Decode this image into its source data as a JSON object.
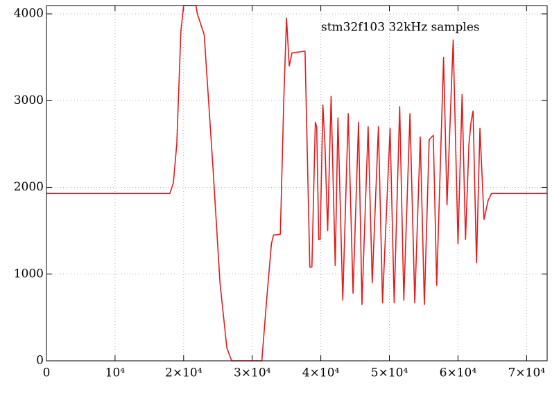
{
  "chart_data": {
    "type": "line",
    "annotation": "stm32f103 32kHz samples",
    "x": [
      0,
      18000,
      18500,
      19000,
      19600,
      20000,
      21800,
      22000,
      23000,
      23300,
      24300,
      25300,
      26300,
      27000,
      31400,
      32100,
      32800,
      33100,
      34100,
      34600,
      35000,
      35400,
      35800,
      37700,
      38000,
      38400,
      38700,
      39200,
      39400,
      39700,
      39900,
      40300,
      40600,
      41000,
      41500,
      42100,
      42500,
      43200,
      44000,
      44700,
      45500,
      46000,
      46900,
      47500,
      48400,
      49000,
      50100,
      50700,
      51500,
      52100,
      53000,
      53700,
      54500,
      55100,
      55800,
      56400,
      56900,
      57900,
      58400,
      59300,
      60000,
      60600,
      61100,
      61600,
      61900,
      62200,
      62700,
      63200,
      63800,
      64400,
      64900,
      73000
    ],
    "values": [
      1930,
      1930,
      2050,
      2500,
      3800,
      4096,
      4096,
      4000,
      3760,
      3400,
      2200,
      900,
      150,
      0,
      0,
      700,
      1350,
      1450,
      1460,
      3000,
      3950,
      3400,
      3550,
      3570,
      2500,
      1080,
      1080,
      2750,
      2700,
      1400,
      1400,
      2950,
      2500,
      1500,
      3050,
      1100,
      2800,
      700,
      2850,
      780,
      2750,
      650,
      2700,
      900,
      2700,
      670,
      2680,
      670,
      2930,
      700,
      2850,
      670,
      2580,
      650,
      2550,
      2600,
      870,
      3500,
      1800,
      3700,
      1350,
      3070,
      1400,
      2500,
      2750,
      2880,
      1130,
      2680,
      1630,
      1850,
      1930,
      1930
    ],
    "color": "#e31a1c",
    "xlim": [
      0,
      73000
    ],
    "ylim": [
      0,
      4096
    ],
    "xticks": [
      0,
      {
        "value": 10000,
        "label": "10⁴"
      },
      {
        "value": 20000,
        "label": "2×10⁴"
      },
      {
        "value": 30000,
        "label": "3×10⁴"
      },
      {
        "value": 40000,
        "label": "4×10⁴"
      },
      {
        "value": 50000,
        "label": "5×10⁴"
      },
      {
        "value": 60000,
        "label": "6×10⁴"
      },
      {
        "value": 70000,
        "label": "7×10⁴"
      }
    ],
    "yticks": [
      0,
      1000,
      2000,
      3000,
      4000
    ],
    "grid": true
  }
}
